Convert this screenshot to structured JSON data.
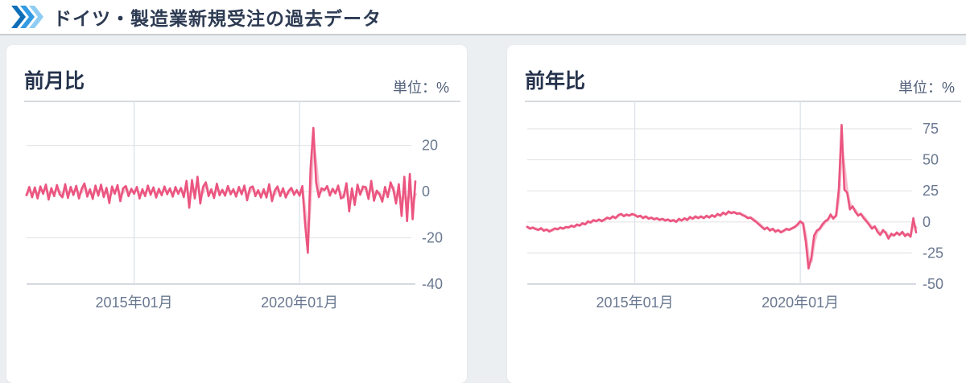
{
  "header": {
    "title": "ドイツ・製造業新規受注の過去データ",
    "icon": "triple-chevron-right",
    "icon_colors": [
      "#0E6FB8",
      "#339BE3",
      "#8FCDF4"
    ]
  },
  "panels": [
    {
      "title": "前月比",
      "unit_label": "単位：%"
    },
    {
      "title": "前年比",
      "unit_label": "単位：%"
    }
  ],
  "colors": {
    "page_bg": "#ECEFF1",
    "card_bg": "#FFFFFF",
    "header_text": "#2C3A52",
    "title_text": "#25324C",
    "line": "#EB5580",
    "line_shadow": "#F6BDCC",
    "grid": "#E5E5E9",
    "axis_border": "#C9CED6",
    "vgrid": "#D9E0EB",
    "tick_text": "#6A7890"
  },
  "chart_data": [
    {
      "type": "line",
      "title": "前月比",
      "ylabel": "%",
      "x_start_month": "2011-10",
      "x_end_month": "2023-07",
      "x_tick_labels": [
        "2015年01月",
        "2020年01月"
      ],
      "x_tick_month_index": [
        39,
        99
      ],
      "y_ticks": [
        20,
        0,
        -20,
        -40
      ],
      "ylim": [
        -40,
        39
      ],
      "grid": true,
      "legend": "none",
      "series": [
        {
          "name": "前月比",
          "color": "#EB5580",
          "values": [
            -1.5,
            2,
            -2.5,
            1.8,
            -3,
            2.2,
            -1,
            3,
            -3.5,
            1.5,
            -2,
            2.8,
            -1.2,
            -2.5,
            3.2,
            -2.8,
            2,
            -1.5,
            2.5,
            -3,
            1.2,
            3.5,
            -2.2,
            1,
            -3.2,
            2.6,
            -1.8,
            3,
            -2.4,
            1.6,
            -5,
            2.2,
            -1,
            2.8,
            -4.2,
            1.4,
            2.4,
            -2,
            1.2,
            -1,
            2,
            -3,
            1,
            -2,
            2.6,
            -1.4,
            1.8,
            -2.6,
            1.2,
            -1.6,
            2.2,
            -1.2,
            1.4,
            -2.2,
            2,
            -1,
            1.6,
            -2.4,
            4.6,
            -7,
            5,
            -3,
            6.4,
            -5.2,
            2,
            4,
            -2,
            1,
            -2.8,
            3.4,
            -1.6,
            0.8,
            -1.8,
            2.4,
            -1.2,
            1,
            -2.2,
            2,
            -1.2,
            2.6,
            -3.8,
            1.6,
            2.2,
            -2,
            0.6,
            -2.6,
            1,
            -2.6,
            3.2,
            -4.2,
            0.4,
            2.2,
            -2,
            1.4,
            -2.6,
            0.2,
            1.6,
            -1.4,
            0.6,
            -1.8,
            2.4,
            -14,
            -26.5,
            10,
            27.5,
            4,
            -2.4,
            1.4,
            0.6,
            2.4,
            -1.8,
            1.2,
            -0.8,
            2.6,
            -3,
            -2.2,
            3.6,
            -8.6,
            1.4,
            -5.8,
            3,
            -1.4,
            2.2,
            1.8,
            -3.2,
            4.6,
            -4,
            0.4,
            -1.2,
            -4.4,
            2,
            -2.4,
            4,
            0.8,
            -5.2,
            3.2,
            -10.6,
            6.4,
            -12.8,
            7.6,
            -12,
            4.4
          ]
        }
      ]
    },
    {
      "type": "line",
      "title": "前年比",
      "ylabel": "%",
      "x_start_month": "2011-10",
      "x_end_month": "2023-07",
      "x_tick_labels": [
        "2015年01月",
        "2020年01月"
      ],
      "x_tick_month_index": [
        39,
        99
      ],
      "y_ticks": [
        75,
        50,
        25,
        0,
        -25,
        -50
      ],
      "ylim": [
        -50,
        97
      ],
      "grid": true,
      "legend": "none",
      "series": [
        {
          "name": "前年比",
          "color": "#EB5580",
          "values": [
            -4,
            -5.5,
            -4.5,
            -5.8,
            -6.5,
            -5,
            -7.2,
            -6,
            -7.8,
            -6.5,
            -5.2,
            -6,
            -4.5,
            -5.5,
            -4,
            -4.5,
            -3,
            -4,
            -2,
            -3,
            -1,
            -2,
            0.5,
            -0.5,
            1.5,
            0.5,
            2,
            0.5,
            2,
            3.5,
            2.5,
            4.5,
            3,
            5.5,
            6.5,
            4.5,
            6,
            5,
            6.5,
            5.5,
            4,
            5,
            3,
            4.5,
            2.5,
            3.5,
            2,
            3,
            1.5,
            2.5,
            1,
            2,
            0.5,
            1.5,
            0,
            2.5,
            1,
            3,
            1.5,
            4,
            2.5,
            4.5,
            3,
            4.5,
            3,
            5,
            3.5,
            5.5,
            4,
            6.5,
            5,
            7.5,
            6,
            8.5,
            7,
            8,
            6.5,
            7,
            5.5,
            4.5,
            3,
            3.5,
            1.5,
            0,
            -2,
            -4,
            -6,
            -4.5,
            -7,
            -5.5,
            -8,
            -6.5,
            -8.5,
            -7,
            -5.5,
            -6.5,
            -5,
            -4,
            -2,
            0.5,
            -1.5,
            -16,
            -37.5,
            -29,
            -11,
            -7,
            -5.5,
            -2,
            0.5,
            2,
            6,
            2.5,
            5.5,
            27,
            78,
            26,
            23.5,
            10,
            12.5,
            8,
            5,
            6.5,
            3,
            0.5,
            -2.5,
            -5.5,
            -3.5,
            -8,
            -10.5,
            -6.5,
            -9,
            -13.5,
            -9.5,
            -11,
            -8.5,
            -10.5,
            -8,
            -11.5,
            -9.5,
            -12,
            3,
            -8.5
          ]
        }
      ]
    }
  ]
}
